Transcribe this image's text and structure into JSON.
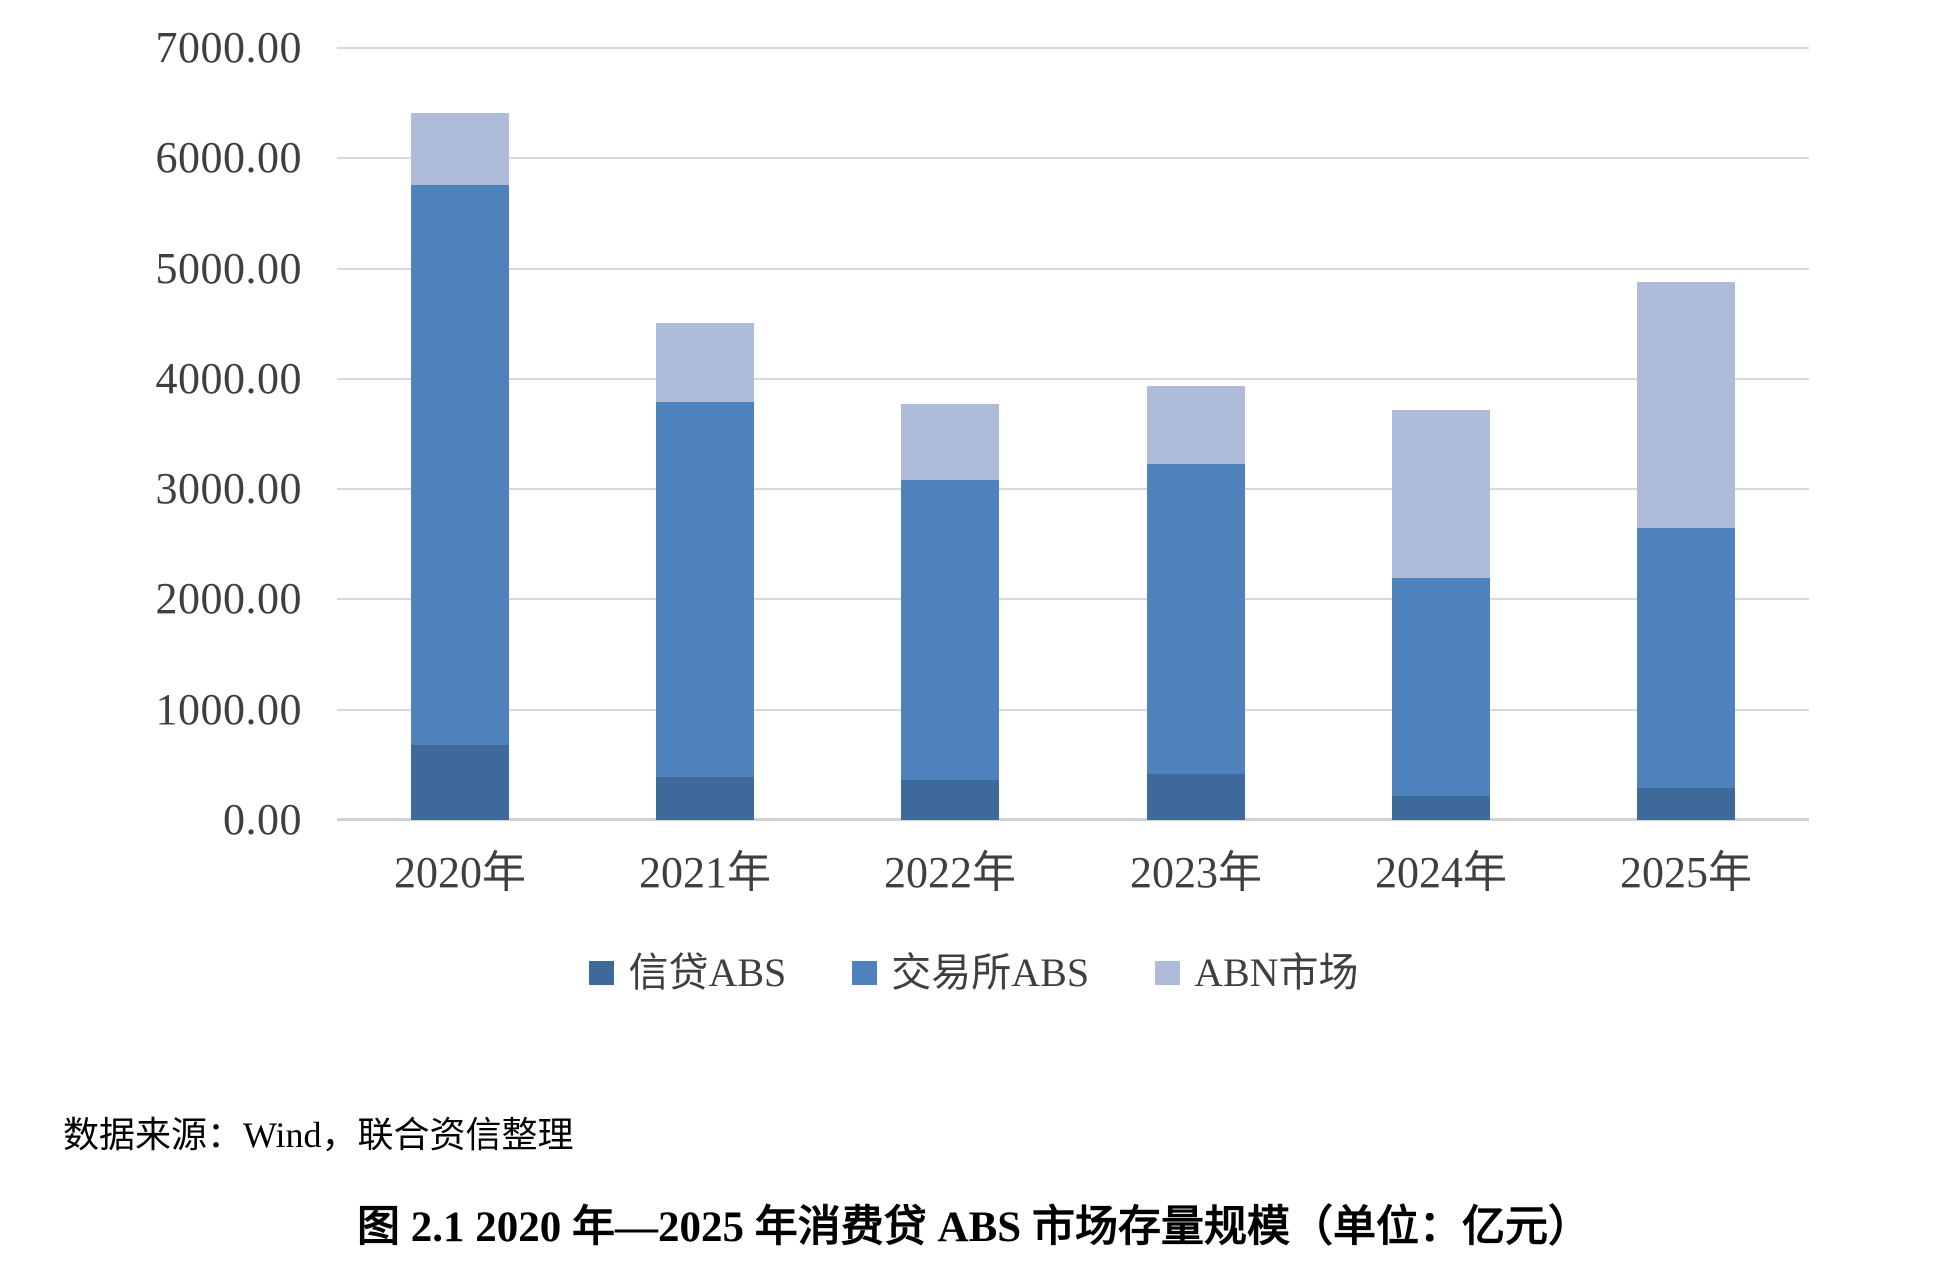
{
  "figure": {
    "source_text": "数据来源：Wind，联合资信整理",
    "caption": "图 2.1  2020 年—2025 年消费贷 ABS 市场存量规模（单位：亿元）"
  },
  "chart_data": {
    "type": "bar",
    "stacked": true,
    "title": "",
    "unit": "亿元",
    "categories": [
      "2020年",
      "2021年",
      "2022年",
      "2023年",
      "2024年",
      "2025年"
    ],
    "series": [
      {
        "name": "信贷ABS",
        "key": "xindai-abs",
        "color": "#3E699B",
        "values": [
          680,
          390,
          360,
          420,
          220,
          290
        ]
      },
      {
        "name": "交易所ABS",
        "key": "jiaoyisuo-abs",
        "color": "#4E82BC",
        "values": [
          5080,
          3400,
          2720,
          2810,
          1970,
          2360
        ]
      },
      {
        "name": "ABN市场",
        "key": "abn-market",
        "color": "#AEBCD9",
        "values": [
          650,
          720,
          690,
          710,
          1530,
          2230
        ]
      }
    ],
    "stack_totals": [
      6410,
      4510,
      3770,
      3940,
      3720,
      4880
    ],
    "ylim": [
      0,
      7000
    ],
    "ytick_step": 1000,
    "ytick_labels": [
      "0.00",
      "1000.00",
      "2000.00",
      "3000.00",
      "4000.00",
      "5000.00",
      "6000.00",
      "7000.00"
    ],
    "grid": true,
    "legend_position": "bottom-center",
    "styles": {
      "grid_color": "#D9D9D9",
      "axis_line_color": "#D2D2D2",
      "tick_text_color": "#3F3F3F",
      "background": "#FFFFFF"
    }
  }
}
